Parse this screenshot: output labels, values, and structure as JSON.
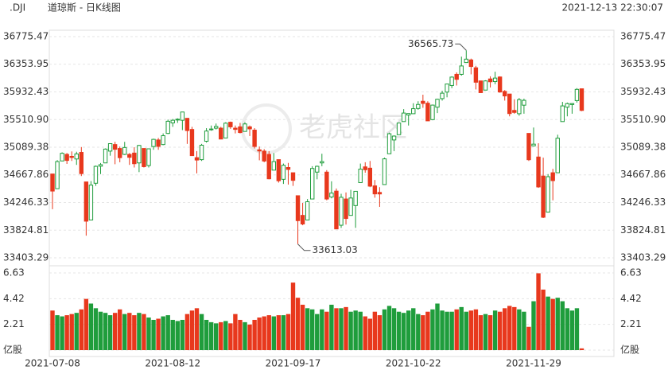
{
  "header": {
    "symbol": ".DJI",
    "title": "道琼斯 - 日K线图",
    "timestamp": "2021-12-13 22:30:07"
  },
  "watermark": "老虎社区",
  "chart_data": {
    "type": "candlestick",
    "categories": [
      "2021-07-08",
      null,
      null,
      null,
      null,
      null,
      null,
      null,
      null,
      null,
      null,
      null,
      null,
      null,
      null,
      null,
      null,
      null,
      null,
      null,
      null,
      null,
      null,
      null,
      null,
      "2021-08-12",
      null,
      null,
      null,
      null,
      null,
      null,
      null,
      null,
      null,
      null,
      null,
      null,
      null,
      null,
      null,
      null,
      null,
      null,
      null,
      null,
      null,
      null,
      null,
      null,
      "2021-09-17",
      null,
      null,
      null,
      null,
      null,
      null,
      null,
      null,
      null,
      null,
      null,
      null,
      null,
      null,
      null,
      null,
      null,
      null,
      null,
      null,
      null,
      null,
      null,
      null,
      "2021-10-22",
      null,
      null,
      null,
      null,
      null,
      null,
      null,
      null,
      null,
      null,
      null,
      null,
      null,
      null,
      null,
      null,
      null,
      null,
      null,
      null,
      null,
      null,
      null,
      null,
      "2021-11-29",
      null,
      null,
      null,
      null,
      null,
      null,
      null,
      null,
      null,
      null
    ],
    "ohlc": [
      [
        34681,
        34681,
        34145,
        34421
      ],
      [
        34457,
        34893,
        34457,
        34870
      ],
      [
        34880,
        35011,
        34880,
        34996
      ],
      [
        34980,
        35001,
        34835,
        34888
      ],
      [
        34950,
        35025,
        34880,
        34933
      ],
      [
        34910,
        35020,
        34820,
        34987
      ],
      [
        35010,
        35092,
        34650,
        34687
      ],
      [
        34560,
        34560,
        33741,
        33962
      ],
      [
        33980,
        34573,
        33980,
        34512
      ],
      [
        34540,
        34810,
        34500,
        34798
      ],
      [
        34800,
        34848,
        34680,
        34823
      ],
      [
        34850,
        35071,
        34850,
        35061
      ],
      [
        35030,
        35150,
        34960,
        35144
      ],
      [
        35130,
        35171,
        34830,
        35058
      ],
      [
        35070,
        35100,
        34860,
        34930
      ],
      [
        34980,
        35171,
        34970,
        35085
      ],
      [
        34980,
        35000,
        34820,
        34935
      ],
      [
        35000,
        35090,
        34780,
        34838
      ],
      [
        34850,
        35125,
        34710,
        35116
      ],
      [
        35070,
        35070,
        34780,
        34793
      ],
      [
        34810,
        35070,
        34780,
        35065
      ],
      [
        35100,
        35219,
        35050,
        35209
      ],
      [
        35200,
        35230,
        35050,
        35102
      ],
      [
        35130,
        35300,
        35120,
        35265
      ],
      [
        35300,
        35510,
        35290,
        35485
      ],
      [
        35460,
        35520,
        35400,
        35500
      ],
      [
        35510,
        35530,
        35460,
        35516
      ],
      [
        35500,
        35630,
        35350,
        35626
      ],
      [
        35530,
        35530,
        35140,
        35343
      ],
      [
        35360,
        35400,
        34960,
        34961
      ],
      [
        34930,
        35030,
        34690,
        34894
      ],
      [
        34900,
        35140,
        34880,
        35120
      ],
      [
        35180,
        35380,
        35160,
        35336
      ],
      [
        35360,
        35420,
        35340,
        35367
      ],
      [
        35380,
        35450,
        35360,
        35406
      ],
      [
        35380,
        35400,
        35210,
        35214
      ],
      [
        35230,
        35470,
        35230,
        35456
      ],
      [
        35470,
        35480,
        35370,
        35400
      ],
      [
        35380,
        35420,
        35300,
        35361
      ],
      [
        35400,
        35460,
        35300,
        35313
      ],
      [
        35330,
        35470,
        35330,
        35444
      ],
      [
        35400,
        35420,
        35260,
        35369
      ],
      [
        35350,
        35380,
        35070,
        35101
      ],
      [
        35050,
        35100,
        34890,
        35032
      ],
      [
        35030,
        35060,
        34860,
        34879
      ],
      [
        34980,
        35030,
        34600,
        34608
      ],
      [
        34740,
        35000,
        34740,
        34870
      ],
      [
        34900,
        34900,
        34550,
        34578
      ],
      [
        34600,
        34840,
        34530,
        34814
      ],
      [
        34780,
        34850,
        34520,
        34751
      ],
      [
        34700,
        34700,
        34500,
        34584
      ],
      [
        34350,
        34350,
        33613.03,
        33970
      ],
      [
        34050,
        34240,
        33900,
        33919
      ],
      [
        33980,
        34300,
        33980,
        34258
      ],
      [
        34300,
        34800,
        34300,
        34765
      ],
      [
        34710,
        34810,
        34600,
        34798
      ],
      [
        34850,
        34990,
        34800,
        34870
      ],
      [
        34710,
        34740,
        34280,
        34300
      ],
      [
        34330,
        34570,
        34310,
        34390
      ],
      [
        34420,
        34460,
        33840,
        33844
      ],
      [
        33900,
        34380,
        33860,
        34326
      ],
      [
        34300,
        34400,
        33910,
        34003
      ],
      [
        34050,
        34440,
        34050,
        34315
      ],
      [
        34200,
        34420,
        33860,
        34417
      ],
      [
        34550,
        34840,
        34550,
        34755
      ],
      [
        34790,
        34860,
        34700,
        34746
      ],
      [
        34770,
        34880,
        34480,
        34496
      ],
      [
        34500,
        34590,
        34320,
        34378
      ],
      [
        34400,
        34480,
        34180,
        34377
      ],
      [
        34520,
        34930,
        34520,
        34912
      ],
      [
        34990,
        35310,
        34990,
        35295
      ],
      [
        35200,
        35270,
        35030,
        35259
      ],
      [
        35280,
        35460,
        35280,
        35458
      ],
      [
        35480,
        35670,
        35480,
        35610
      ],
      [
        35580,
        35600,
        35420,
        35603
      ],
      [
        35600,
        35760,
        35600,
        35677
      ],
      [
        35680,
        35790,
        35660,
        35741
      ],
      [
        35790,
        35890,
        35690,
        35757
      ],
      [
        35760,
        35790,
        35490,
        35491
      ],
      [
        35510,
        35740,
        35500,
        35731
      ],
      [
        35700,
        35830,
        35610,
        35820
      ],
      [
        35830,
        35950,
        35800,
        35913
      ],
      [
        35930,
        36060,
        35850,
        36053
      ],
      [
        36030,
        36170,
        35990,
        36158
      ],
      [
        36200,
        36230,
        36030,
        36124
      ],
      [
        36200,
        36470,
        36180,
        36328
      ],
      [
        36380,
        36565.73,
        36380,
        36432
      ],
      [
        36420,
        36440,
        36200,
        36320
      ],
      [
        36300,
        36330,
        35970,
        36080
      ],
      [
        36100,
        36100,
        35920,
        35921
      ],
      [
        35960,
        36110,
        35960,
        36100
      ],
      [
        36130,
        36170,
        36000,
        36087
      ],
      [
        36090,
        36240,
        36050,
        36143
      ],
      [
        36160,
        36170,
        35920,
        35931
      ],
      [
        35940,
        35960,
        35800,
        35871
      ],
      [
        35900,
        35900,
        35560,
        35602
      ],
      [
        35650,
        35820,
        35600,
        35620
      ],
      [
        35600,
        35840,
        35570,
        35814
      ],
      [
        35730,
        35830,
        35600,
        35804
      ],
      [
        35300,
        35300,
        34880,
        34899
      ],
      [
        35110,
        35390,
        35100,
        35136
      ],
      [
        34940,
        35150,
        34470,
        34484
      ],
      [
        34650,
        34930,
        34010,
        34022
      ],
      [
        34100,
        34680,
        34100,
        34640
      ],
      [
        34700,
        34760,
        34280,
        34580
      ],
      [
        34700,
        35280,
        34700,
        35227
      ],
      [
        35480,
        35780,
        35480,
        35719
      ],
      [
        35700,
        35770,
        35560,
        35754
      ],
      [
        35740,
        35760,
        35600,
        35755
      ],
      [
        35800,
        35990,
        35770,
        35971
      ],
      [
        35980,
        35980,
        35640,
        35650
      ]
    ],
    "volume": [
      3.4,
      3.0,
      2.9,
      3.0,
      3.1,
      3.2,
      3.5,
      4.4,
      4.0,
      3.6,
      3.3,
      3.2,
      3.0,
      3.2,
      3.5,
      3.1,
      3.2,
      3.0,
      3.2,
      3.1,
      2.8,
      2.6,
      2.7,
      2.9,
      3.0,
      2.6,
      2.5,
      2.6,
      3.1,
      3.4,
      3.6,
      3.1,
      2.6,
      2.4,
      2.3,
      2.4,
      2.5,
      2.3,
      3.1,
      2.6,
      2.4,
      2.2,
      2.6,
      2.8,
      2.9,
      3.0,
      2.9,
      3.0,
      3.0,
      3.1,
      5.8,
      4.5,
      3.9,
      3.6,
      3.5,
      3.1,
      3.5,
      3.3,
      3.9,
      3.6,
      3.6,
      3.7,
      3.3,
      3.4,
      3.3,
      2.9,
      2.7,
      3.3,
      3.0,
      3.5,
      3.8,
      3.6,
      3.3,
      3.2,
      3.4,
      3.6,
      3.1,
      3.0,
      3.3,
      3.5,
      4.0,
      3.4,
      3.3,
      3.3,
      3.5,
      3.7,
      3.3,
      3.4,
      3.5,
      3.0,
      3.1,
      3.0,
      3.4,
      3.3,
      3.6,
      3.8,
      3.7,
      3.5,
      3.3,
      2.0,
      4.2,
      6.6,
      5.2,
      4.6,
      4.4,
      4.5,
      4.2,
      3.6,
      3.4,
      3.6,
      0.15
    ],
    "up_color": "#1f9d3c",
    "down_color": "#e8381d",
    "ylim": [
      33403.29,
      36775.47
    ],
    "yticks": [
      36775.47,
      36353.95,
      35932.43,
      {
        "value": 35510.9,
        "label": "35510.90"
      },
      35089.38,
      34667.86,
      34246.33,
      33824.81,
      33403.29
    ],
    "vol_ylim": [
      0,
      6.63
    ],
    "vol_yticks": [
      6.63,
      4.42,
      2.21,
      {
        "value": 0,
        "label": "亿股"
      }
    ],
    "grid": true
  }
}
